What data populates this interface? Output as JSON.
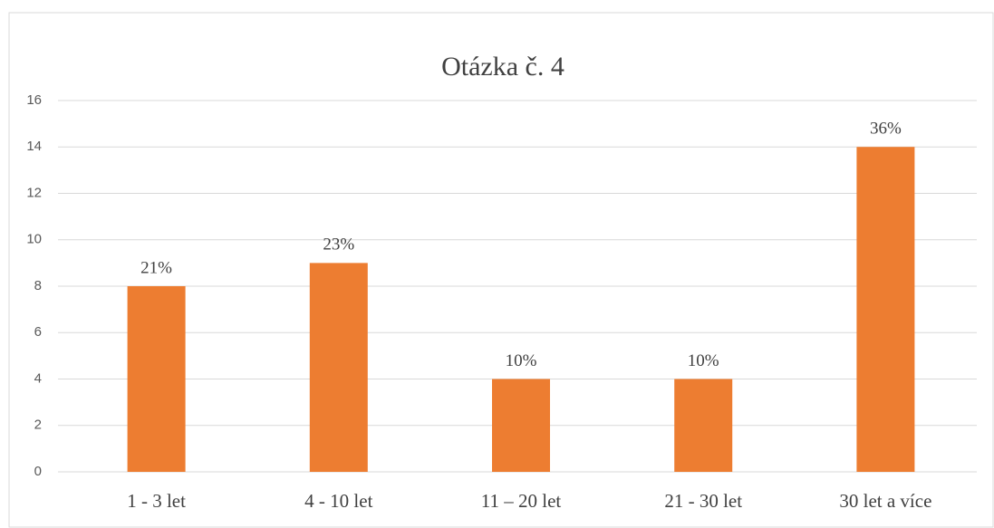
{
  "chart_data": {
    "type": "bar",
    "title": "Otázka č. 4",
    "categories": [
      "1 - 3 let",
      "4 - 10 let",
      "11 – 20 let",
      "21 - 30 let",
      "30 let a více"
    ],
    "values": [
      8,
      9,
      4,
      4,
      14
    ],
    "value_labels": [
      "21%",
      "23%",
      "10%",
      "10%",
      "36%"
    ],
    "color": "#ed7d31",
    "ylim": [
      0,
      16
    ],
    "yticks": [
      0,
      2,
      4,
      6,
      8,
      10,
      12,
      14,
      16
    ],
    "grid": true
  }
}
